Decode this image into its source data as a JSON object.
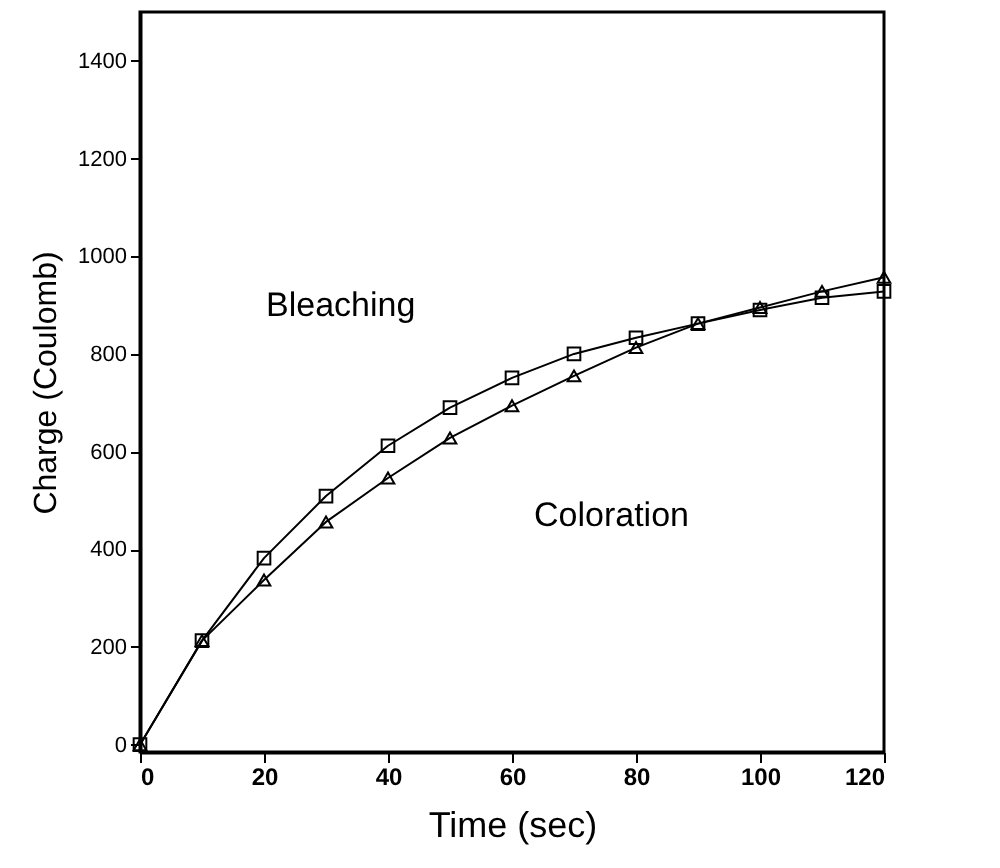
{
  "chart_data": {
    "type": "line",
    "xlabel": "Time (sec)",
    "ylabel": "Charge (Coulomb)",
    "x": [
      0,
      10,
      20,
      30,
      40,
      50,
      60,
      70,
      80,
      90,
      100,
      110,
      120
    ],
    "series": [
      {
        "name": "Bleaching",
        "color": "#000000",
        "marker": "square",
        "values": [
          0,
          213,
          382,
          509,
          612,
          690,
          751,
          800,
          833,
          862,
          890,
          915,
          928
        ]
      },
      {
        "name": "Coloration",
        "color": "#000000",
        "marker": "triangle",
        "values": [
          0,
          213,
          337,
          456,
          546,
          628,
          694,
          755,
          813,
          862,
          895,
          928,
          957
        ]
      }
    ],
    "xlim": [
      0,
      120
    ],
    "ylim": [
      -15,
      1500
    ],
    "xticks": [
      0,
      20,
      40,
      60,
      80,
      100,
      120
    ],
    "yticks": [
      0,
      200,
      400,
      600,
      800,
      1000,
      1200,
      1400
    ],
    "grid": false,
    "legend": false,
    "line_style": "solid"
  }
}
